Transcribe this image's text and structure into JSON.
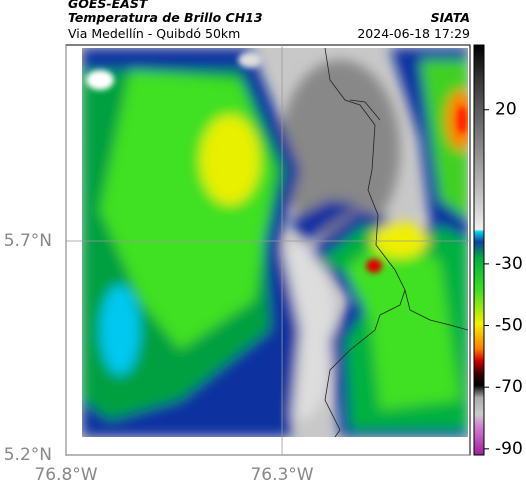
{
  "header": {
    "title": "GOES-EAST",
    "subtitle": "Temperatura de Brillo CH13",
    "location": "Via Medellín - Quibdó 50km",
    "source": "SIATA",
    "timestamp": "2024-06-18 17:29"
  },
  "map": {
    "xlim": [
      -76.8,
      -75.865
    ],
    "ylim": [
      5.2,
      6.158
    ],
    "xticks": [
      {
        "value": -76.8,
        "label": "76.8°W"
      },
      {
        "value": -76.3,
        "label": "76.3°W"
      }
    ],
    "yticks": [
      {
        "value": 5.7,
        "label": "5.7°N"
      },
      {
        "value": 5.2,
        "label": "5.2°N"
      }
    ]
  },
  "colorbar": {
    "lim": [
      41,
      -92
    ],
    "ticks": [
      20,
      -30,
      -50,
      -70,
      -90
    ]
  }
}
